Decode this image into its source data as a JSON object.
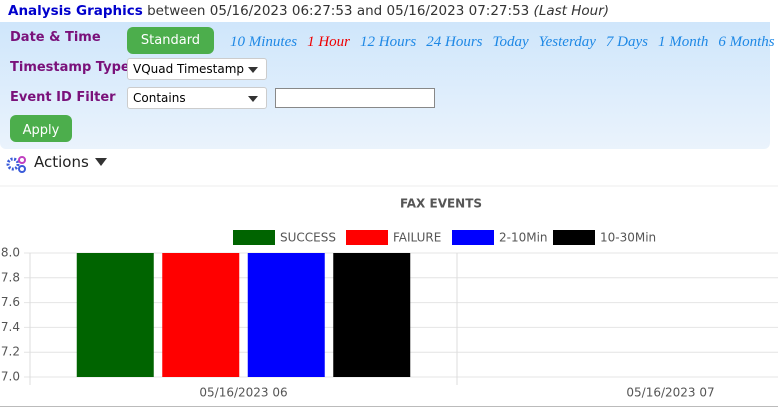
{
  "header": {
    "title": "Analysis Graphics",
    "between": "between",
    "start": "05/16/2023 06:27:53",
    "and": "and",
    "end": "05/16/2023 07:27:53",
    "range": "(Last Hour)"
  },
  "filters": {
    "date_time": {
      "label": "Date & Time",
      "button": "Standard",
      "ranges": [
        "10 Minutes",
        "1 Hour",
        "12 Hours",
        "24 Hours",
        "Today",
        "Yesterday",
        "7 Days",
        "1 Month",
        "6 Months"
      ],
      "selected": 1
    },
    "timestamp_type": {
      "label": "Timestamp Type",
      "value": "VQuad Timestamp"
    },
    "event_id_filter": {
      "label": "Event ID Filter",
      "value": "Contains"
    },
    "apply": "Apply"
  },
  "actions": "Actions",
  "chart_data": {
    "type": "bar",
    "title": "FAX EVENTS",
    "categories": [
      "05/16/2023 06",
      "05/16/2023 07"
    ],
    "series": [
      {
        "name": "SUCCESS",
        "color": "#006400",
        "values": [
          8,
          null
        ]
      },
      {
        "name": "FAILURE",
        "color": "#ff0000",
        "values": [
          8,
          null
        ]
      },
      {
        "name": "2-10Min",
        "color": "#0000ff",
        "values": [
          8,
          null
        ]
      },
      {
        "name": "10-30Min",
        "color": "#000000",
        "values": [
          8,
          null
        ]
      }
    ],
    "ylim": [
      7,
      8
    ],
    "yticks": [
      {
        "value": 7,
        "label": "7.0"
      },
      7.2,
      7.4,
      7.6,
      7.8,
      {
        "value": 8,
        "label": "8.0"
      }
    ],
    "grid": true,
    "legend": "top"
  }
}
